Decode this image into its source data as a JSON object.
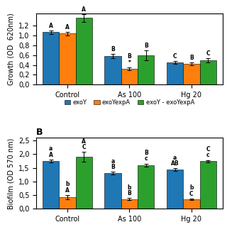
{
  "chart_data": [
    {
      "type": "bar",
      "ylabel": "Growth (OD  620nm)",
      "categories": [
        "Control",
        "As 100",
        "Hg 20"
      ],
      "ylim": [
        0.0,
        1.45
      ],
      "yticks": [
        {
          "value": 0.0,
          "label": "0,0"
        },
        {
          "value": 0.2,
          "label": "0,2"
        },
        {
          "value": 0.4,
          "label": "0,4"
        },
        {
          "value": 0.6,
          "label": "0,6"
        },
        {
          "value": 0.8,
          "label": "0,8"
        },
        {
          "value": 1.0,
          "label": "1,0"
        },
        {
          "value": 1.2,
          "label": "1,2"
        }
      ],
      "legend": "below",
      "series": [
        {
          "name": "exoY",
          "values": [
            1.07,
            0.58,
            0.45
          ],
          "errors": [
            0.04,
            0.04,
            0.03
          ],
          "letter_labels": [
            "A",
            "B",
            "C"
          ]
        },
        {
          "name": "exoYexpA",
          "values": [
            1.04,
            0.32,
            0.42
          ],
          "errors": [
            0.04,
            0.03,
            0.03
          ],
          "letter_labels": [
            "A",
            "B\n*",
            "B"
          ]
        },
        {
          "name": "exoY - exoYexpA",
          "values": [
            1.36,
            0.6,
            0.5
          ],
          "errors": [
            0.08,
            0.1,
            0.04
          ],
          "letter_labels": [
            "A",
            "B",
            "C"
          ]
        }
      ]
    },
    {
      "type": "bar",
      "title": "B",
      "ylabel": "Biofilm (OD 570 nm)",
      "categories": [
        "Control",
        "As 100",
        "Hg 20"
      ],
      "ylim": [
        0.0,
        2.6
      ],
      "yticks": [
        {
          "value": 0.0,
          "label": "0,0"
        },
        {
          "value": 0.5,
          "label": "0,5"
        },
        {
          "value": 1.0,
          "label": "1,0"
        },
        {
          "value": 1.5,
          "label": "1,5"
        },
        {
          "value": 2.0,
          "label": "2,0"
        },
        {
          "value": 2.5,
          "label": "2,5"
        }
      ],
      "series": [
        {
          "name": "exoY",
          "values": [
            1.75,
            1.3,
            1.43
          ],
          "errors": [
            0.06,
            0.05,
            0.05
          ],
          "letter_labels": [
            "A",
            "B",
            "AB"
          ],
          "letter_labels_above": [
            "a",
            "a",
            "a"
          ]
        },
        {
          "name": "exoYexpA",
          "values": [
            0.43,
            0.36,
            0.35
          ],
          "errors": [
            0.07,
            0.03,
            0.03
          ],
          "letter_labels": [
            "A",
            "B",
            "C"
          ],
          "letter_labels_above": [
            "b",
            "b",
            "b"
          ]
        },
        {
          "name": "exoY - exoYexpA",
          "values": [
            1.9,
            1.6,
            1.75
          ],
          "errors": [
            0.18,
            0.06,
            0.04
          ],
          "letter_labels": [
            "A\nC",
            "B\nc",
            "C\nc"
          ]
        }
      ]
    }
  ]
}
